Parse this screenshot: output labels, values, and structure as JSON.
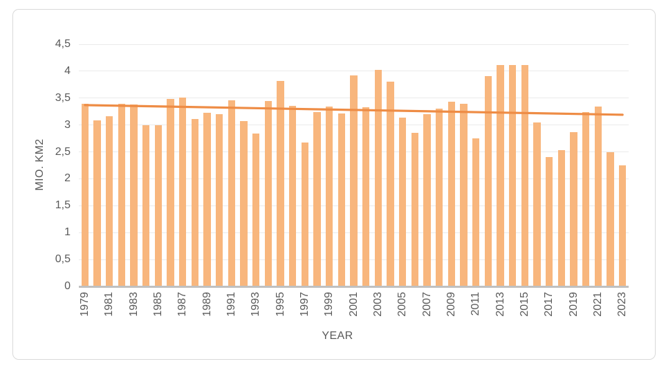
{
  "chart_data": {
    "type": "bar",
    "title": "",
    "xlabel": "YEAR",
    "ylabel": "MIO. KM2",
    "ylim": [
      0,
      4.5
    ],
    "ytick_step": 0.5,
    "ytick_labels": [
      "0",
      "0,5",
      "1",
      "1,5",
      "2",
      "2,5",
      "3",
      "3,5",
      "4",
      "4,5"
    ],
    "grid": "horizontal",
    "legend": "none",
    "categories": [
      "1979",
      "1980",
      "1981",
      "1982",
      "1983",
      "1984",
      "1985",
      "1986",
      "1987",
      "1988",
      "1989",
      "1990",
      "1991",
      "1992",
      "1993",
      "1994",
      "1995",
      "1996",
      "1997",
      "1998",
      "1999",
      "2000",
      "2001",
      "2002",
      "2003",
      "2004",
      "2005",
      "2006",
      "2007",
      "2008",
      "2009",
      "2010",
      "2011",
      "2012",
      "2013",
      "2014",
      "2015",
      "2016",
      "2017",
      "2018",
      "2019",
      "2020",
      "2021",
      "2022",
      "2023"
    ],
    "xtick_labels": [
      "1979",
      "1981",
      "1983",
      "1985",
      "1987",
      "1989",
      "1991",
      "1993",
      "1995",
      "1997",
      "1999",
      "2001",
      "2003",
      "2005",
      "2007",
      "2009",
      "2011",
      "2013",
      "2015",
      "2017",
      "2019",
      "2021",
      "2023"
    ],
    "values": [
      3.4,
      3.08,
      3.16,
      3.4,
      3.38,
      2.99,
      3.0,
      3.48,
      3.51,
      3.11,
      3.23,
      3.2,
      3.46,
      3.07,
      2.84,
      3.45,
      3.82,
      3.35,
      2.67,
      3.24,
      3.34,
      3.22,
      3.92,
      3.33,
      4.02,
      3.81,
      3.14,
      2.85,
      3.2,
      3.31,
      3.43,
      3.4,
      2.75,
      3.91,
      4.12,
      4.11,
      4.12,
      3.05,
      2.4,
      2.53,
      2.87,
      3.24,
      3.34,
      2.5,
      2.25
    ],
    "trendline": {
      "type": "linear",
      "start_value": 3.37,
      "end_value": 3.19
    },
    "colors": {
      "bar": "#F8B67D",
      "trend": "#EE8C45",
      "grid": "#EAEAEA",
      "axis_line": "#C0C0C0",
      "text": "#595959",
      "border": "#D9D9D9"
    }
  }
}
